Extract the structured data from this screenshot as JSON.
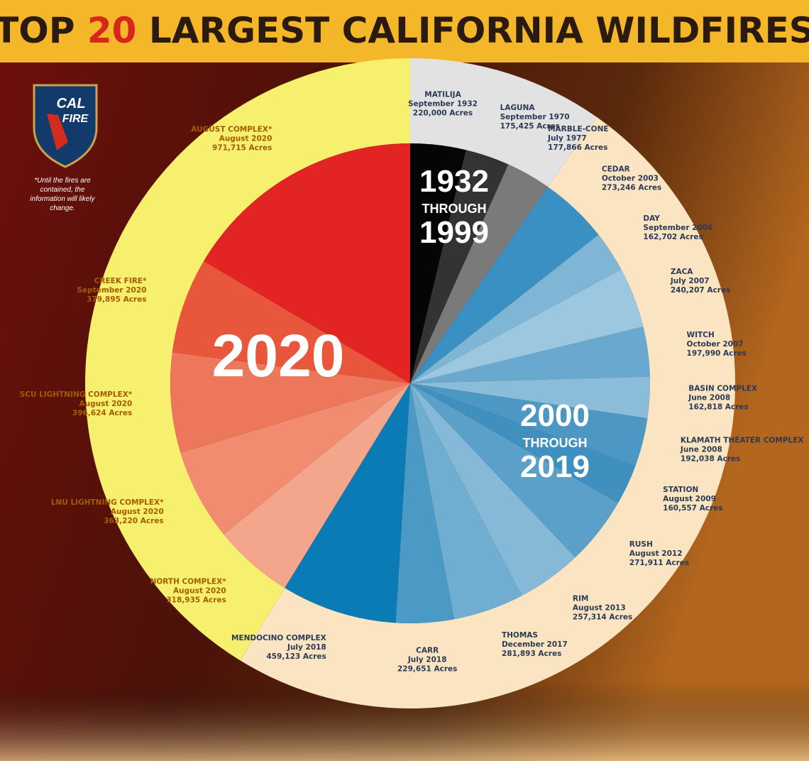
{
  "chart_data": {
    "type": "pie",
    "title_start": "TOP",
    "title_number": "20",
    "title_end": "LARGEST CALIFORNIA WILDFIRES",
    "logo_top": "CAL",
    "logo_bottom": "FIRE",
    "note": "*Until the fires are contained, the information will likely change.",
    "groups": [
      {
        "label_top": "1932",
        "label_mid": "THROUGH",
        "label_bottom": "1999",
        "ring_color": "#e2e2e2",
        "fires": [
          {
            "name": "MATILIJA",
            "date": "September 1932",
            "value": 220000,
            "value_label": "220,000 Acres",
            "color": "#050505"
          },
          {
            "name": "LAGUNA",
            "date": "September 1970",
            "value": 175425,
            "value_label": "175,425 Acres",
            "color": "#333333"
          },
          {
            "name": "MARBLE-CONE",
            "date": "July 1977",
            "value": 177866,
            "value_label": "177,866 Acres",
            "color": "#7a7a7a"
          }
        ]
      },
      {
        "label_top": "2000",
        "label_mid": "THROUGH",
        "label_bottom": "2019",
        "ring_color": "#fbe4c2",
        "fires": [
          {
            "name": "CEDAR",
            "date": "October 2003",
            "value": 273246,
            "value_label": "273,246 Acres",
            "color": "#3a90c2"
          },
          {
            "name": "DAY",
            "date": "September 2006",
            "value": 162702,
            "value_label": "162,702 Acres",
            "color": "#7fb6d6"
          },
          {
            "name": "ZACA",
            "date": "July 2007",
            "value": 240207,
            "value_label": "240,207 Acres",
            "color": "#9cc7e0"
          },
          {
            "name": "WITCH",
            "date": "October 2007",
            "value": 197990,
            "value_label": "197,990 Acres",
            "color": "#6aa9cf"
          },
          {
            "name": "BASIN COMPLEX",
            "date": "June 2008",
            "value": 162818,
            "value_label": "162,818 Acres",
            "color": "#8bbdda"
          },
          {
            "name": "KLAMATH THEATER COMPLEX",
            "date": "June 2008",
            "value": 192038,
            "value_label": "192,038 Acres",
            "color": "#4d97c4"
          },
          {
            "name": "STATION",
            "date": "August 2009",
            "value": 160557,
            "value_label": "160,557 Acres",
            "color": "#3f8fbf"
          },
          {
            "name": "RUSH",
            "date": "August 2012",
            "value": 271911,
            "value_label": "271,911 Acres",
            "color": "#5aa0c9"
          },
          {
            "name": "RIM",
            "date": "August 2013",
            "value": 257314,
            "value_label": "257,314 Acres",
            "color": "#86b8d8"
          },
          {
            "name": "THOMAS",
            "date": "December 2017",
            "value": 281893,
            "value_label": "281,893 Acres",
            "color": "#6fadd1"
          },
          {
            "name": "CARR",
            "date": "July 2018",
            "value": 229651,
            "value_label": "229,651 Acres",
            "color": "#4b9ac5"
          },
          {
            "name": "MENDOCINO COMPLEX",
            "date": "July 2018",
            "value": 459123,
            "value_label": "459,123 Acres",
            "color": "#0a7bb4"
          }
        ]
      },
      {
        "label_top": "2020",
        "ring_color": "#f7ef6e",
        "fires": [
          {
            "name": "NORTH COMPLEX*",
            "date": "August 2020",
            "value": 318935,
            "value_label": "318,935 Acres",
            "color": "#f4a68c"
          },
          {
            "name": "LNU LIGHTNING COMPLEX*",
            "date": "August 2020",
            "value": 363220,
            "value_label": "363,220 Acres",
            "color": "#f18c70"
          },
          {
            "name": "SCU LIGHTNING COMPLEX*",
            "date": "August 2020",
            "value": 396624,
            "value_label": "396,624 Acres",
            "color": "#ed775a"
          },
          {
            "name": "CREEK FIRE*",
            "date": "September 2020",
            "value": 379895,
            "value_label": "379,895 Acres",
            "color": "#e8563b"
          },
          {
            "name": "AUGUST COMPLEX*",
            "date": "August 2020",
            "value": 971715,
            "value_label": "971,715 Acres",
            "color": "#e22424"
          }
        ]
      }
    ]
  }
}
